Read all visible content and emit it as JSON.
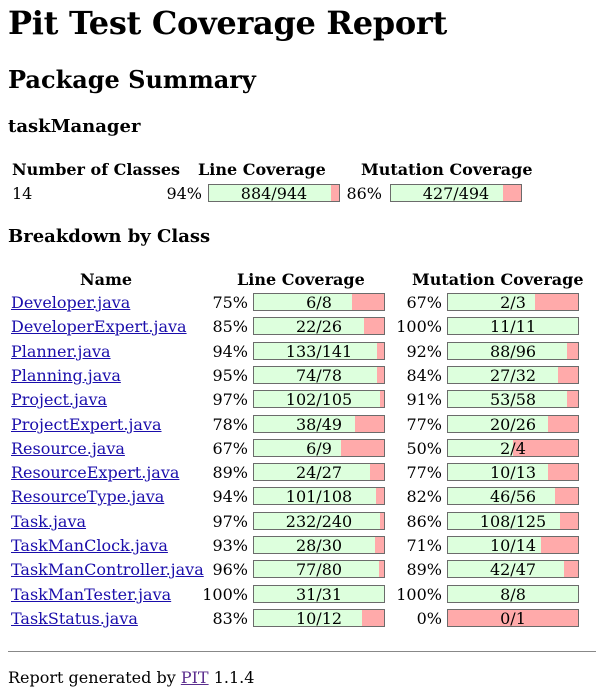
{
  "title": "Pit Test Coverage Report",
  "package_summary_heading": "Package Summary",
  "package_name": "taskManager",
  "summary": {
    "headers": {
      "classes": "Number of Classes",
      "line": "Line Coverage",
      "mutation": "Mutation Coverage"
    },
    "classes": "14",
    "line_pct": "94%",
    "line_ratio": "884/944",
    "line_fraction": 0.936,
    "mutation_pct": "86%",
    "mutation_ratio": "427/494",
    "mutation_fraction": 0.864
  },
  "breakdown_heading": "Breakdown by Class",
  "table": {
    "headers": {
      "name": "Name",
      "line": "Line Coverage",
      "mutation": "Mutation Coverage"
    },
    "rows": [
      {
        "name": "Developer.java",
        "line_pct": "75%",
        "line_ratio": "6/8",
        "line_fraction": 0.75,
        "mut_pct": "67%",
        "mut_ratio": "2/3",
        "mut_fraction": 0.667
      },
      {
        "name": "DeveloperExpert.java",
        "line_pct": "85%",
        "line_ratio": "22/26",
        "line_fraction": 0.846,
        "mut_pct": "100%",
        "mut_ratio": "11/11",
        "mut_fraction": 1.0
      },
      {
        "name": "Planner.java",
        "line_pct": "94%",
        "line_ratio": "133/141",
        "line_fraction": 0.943,
        "mut_pct": "92%",
        "mut_ratio": "88/96",
        "mut_fraction": 0.917
      },
      {
        "name": "Planning.java",
        "line_pct": "95%",
        "line_ratio": "74/78",
        "line_fraction": 0.949,
        "mut_pct": "84%",
        "mut_ratio": "27/32",
        "mut_fraction": 0.844
      },
      {
        "name": "Project.java",
        "line_pct": "97%",
        "line_ratio": "102/105",
        "line_fraction": 0.971,
        "mut_pct": "91%",
        "mut_ratio": "53/58",
        "mut_fraction": 0.914
      },
      {
        "name": "ProjectExpert.java",
        "line_pct": "78%",
        "line_ratio": "38/49",
        "line_fraction": 0.776,
        "mut_pct": "77%",
        "mut_ratio": "20/26",
        "mut_fraction": 0.769
      },
      {
        "name": "Resource.java",
        "line_pct": "67%",
        "line_ratio": "6/9",
        "line_fraction": 0.667,
        "mut_pct": "50%",
        "mut_ratio": "2/4",
        "mut_fraction": 0.5
      },
      {
        "name": "ResourceExpert.java",
        "line_pct": "89%",
        "line_ratio": "24/27",
        "line_fraction": 0.889,
        "mut_pct": "77%",
        "mut_ratio": "10/13",
        "mut_fraction": 0.769
      },
      {
        "name": "ResourceType.java",
        "line_pct": "94%",
        "line_ratio": "101/108",
        "line_fraction": 0.935,
        "mut_pct": "82%",
        "mut_ratio": "46/56",
        "mut_fraction": 0.821
      },
      {
        "name": "Task.java",
        "line_pct": "97%",
        "line_ratio": "232/240",
        "line_fraction": 0.967,
        "mut_pct": "86%",
        "mut_ratio": "108/125",
        "mut_fraction": 0.864
      },
      {
        "name": "TaskManClock.java",
        "line_pct": "93%",
        "line_ratio": "28/30",
        "line_fraction": 0.933,
        "mut_pct": "71%",
        "mut_ratio": "10/14",
        "mut_fraction": 0.714
      },
      {
        "name": "TaskManController.java",
        "line_pct": "96%",
        "line_ratio": "77/80",
        "line_fraction": 0.9625,
        "mut_pct": "89%",
        "mut_ratio": "42/47",
        "mut_fraction": 0.894
      },
      {
        "name": "TaskManTester.java",
        "line_pct": "100%",
        "line_ratio": "31/31",
        "line_fraction": 1.0,
        "mut_pct": "100%",
        "mut_ratio": "8/8",
        "mut_fraction": 1.0
      },
      {
        "name": "TaskStatus.java",
        "line_pct": "83%",
        "line_ratio": "10/12",
        "line_fraction": 0.833,
        "mut_pct": "0%",
        "mut_ratio": "0/1",
        "mut_fraction": 0.0
      }
    ]
  },
  "footer": {
    "prefix": "Report generated by",
    "link": "PIT",
    "version": "1.1.4"
  },
  "colors": {
    "covered": "#ddffdd",
    "uncovered": "#ffaaaa",
    "link": "#1a0dab",
    "visited_link": "#5b2d8e"
  }
}
